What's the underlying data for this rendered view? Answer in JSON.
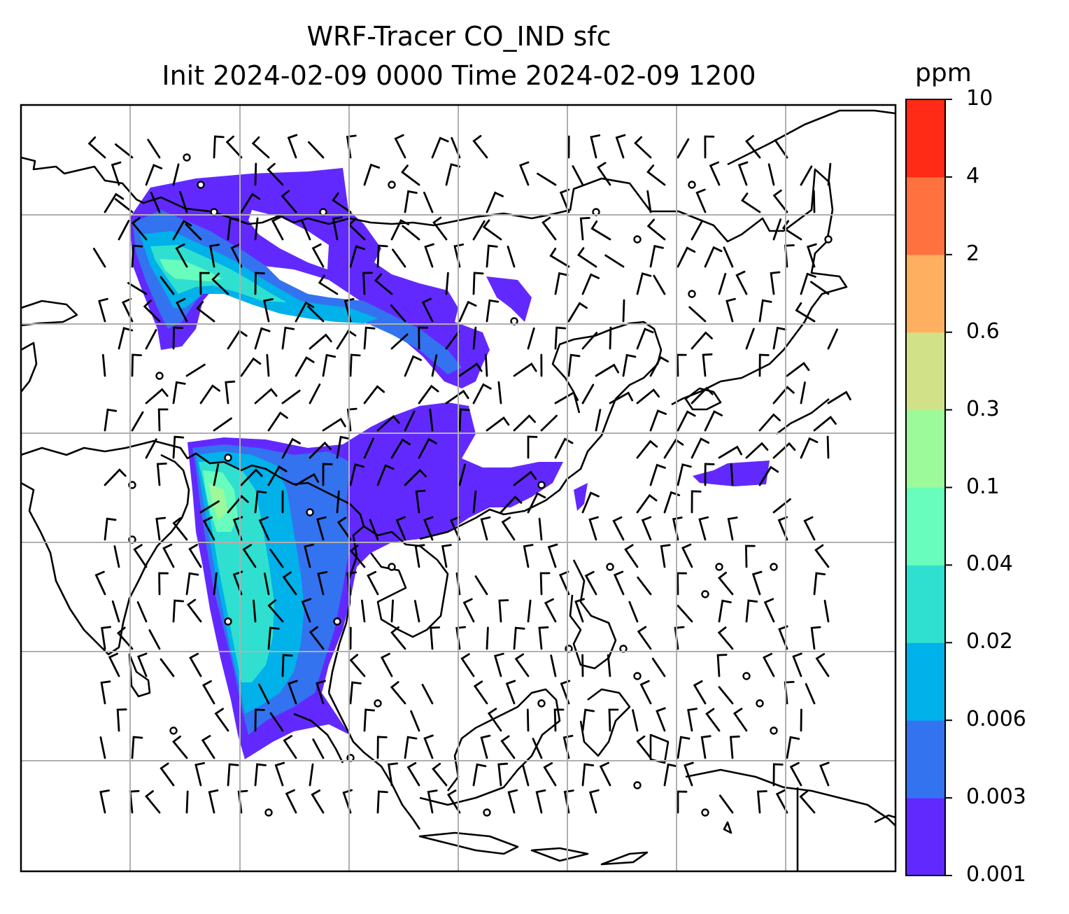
{
  "title": {
    "line1": "WRF-Tracer CO_IND sfc",
    "line2": "Init 2024-02-09 0000 Time 2024-02-09 1200"
  },
  "colorbar": {
    "unit": "ppm",
    "levels": [
      "0.001",
      "0.003",
      "0.006",
      "0.02",
      "0.04",
      "0.1",
      "0.3",
      "0.6",
      "2",
      "4",
      "10"
    ],
    "colors": [
      "#6229ff",
      "#3373f0",
      "#00b1ea",
      "#2fe0d0",
      "#68fcbd",
      "#9cfa9a",
      "#d0e187",
      "#ffaf60",
      "#ff7240",
      "#ff2b16"
    ]
  },
  "map": {
    "gridline_color": "#b0b0b0",
    "coastline_color": "#000000",
    "wind_barb_color": "#000000"
  }
}
